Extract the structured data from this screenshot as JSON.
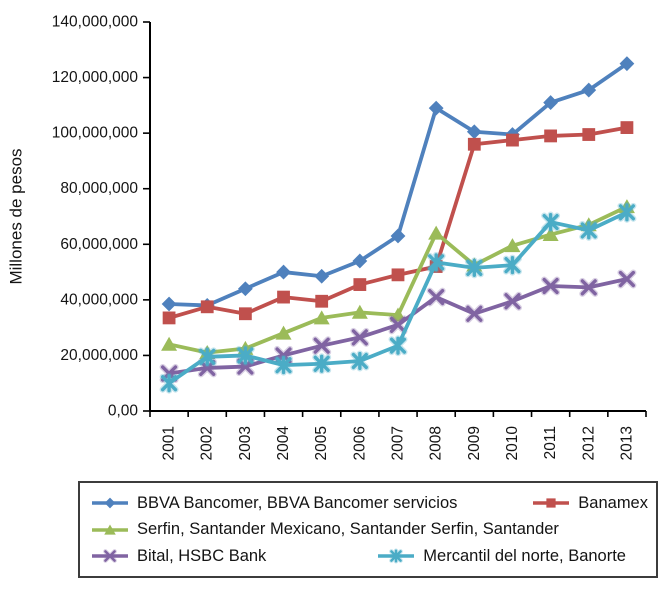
{
  "figure": {
    "background": "#ffffff",
    "axis_color": "#000000",
    "text_color": "#141414"
  },
  "chart_data": {
    "type": "line",
    "title": "",
    "xlabel": "",
    "ylabel": "Millones de pesos",
    "ylim": [
      0,
      140000000
    ],
    "ytick_step": 20000000,
    "grid": false,
    "legend_position": "bottom-box",
    "y_tick_labels": [
      "0,00",
      "20,000,000",
      "40,000,000",
      "60,000,000",
      "80,000,000",
      "100,000,000",
      "120,000,000",
      "140,000,000"
    ],
    "categories": [
      "2001",
      "2002",
      "2003",
      "2004",
      "2005",
      "2006",
      "2007",
      "2008",
      "2009",
      "2010",
      "2011",
      "2012",
      "2013"
    ],
    "series": [
      {
        "name": "BBVA Bancomer, BBVA Bancomer servicios",
        "color": "#4f81bd",
        "marker": "diamond",
        "values": [
          38500000,
          38000000,
          44000000,
          50000000,
          48500000,
          54000000,
          63000000,
          109000000,
          100500000,
          99500000,
          111000000,
          115500000,
          125000000
        ]
      },
      {
        "name": "Banamex",
        "color": "#c0504d",
        "marker": "square",
        "values": [
          33500000,
          37500000,
          35000000,
          41000000,
          39500000,
          45500000,
          49000000,
          52000000,
          96000000,
          97500000,
          99000000,
          99500000,
          102000000
        ]
      },
      {
        "name": "Serfin, Santander Mexicano, Santander Serfin, Santander",
        "color": "#9bbb59",
        "marker": "triangle",
        "values": [
          24000000,
          21000000,
          22500000,
          28000000,
          33500000,
          35500000,
          34500000,
          64000000,
          52500000,
          59500000,
          63500000,
          67000000,
          73500000
        ]
      },
      {
        "name": "Bital, HSBC Bank",
        "color": "#8064a2",
        "marker": "x",
        "values": [
          13500000,
          15500000,
          16000000,
          20000000,
          23500000,
          26500000,
          31000000,
          41000000,
          35000000,
          39500000,
          45000000,
          44500000,
          47500000
        ]
      },
      {
        "name": "Mercantil del norte, Banorte",
        "color": "#4bacc6",
        "marker": "asterisk",
        "values": [
          10000000,
          19500000,
          20000000,
          16500000,
          17000000,
          18000000,
          23500000,
          53500000,
          51500000,
          52500000,
          68000000,
          65000000,
          71500000
        ]
      }
    ]
  },
  "legend": {
    "rows": [
      [
        0,
        1
      ],
      [
        2
      ],
      [
        3,
        4
      ]
    ]
  }
}
